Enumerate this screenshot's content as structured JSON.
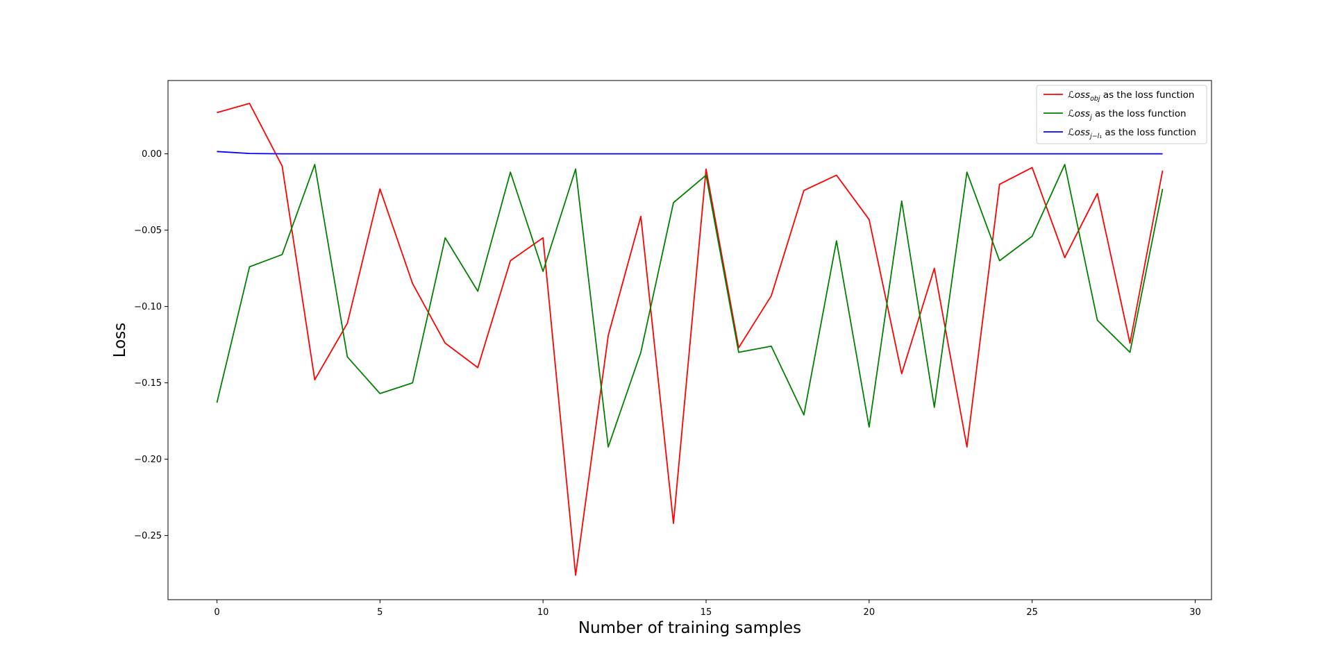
{
  "chart_data": {
    "type": "line",
    "title": "",
    "xlabel": "Number of training samples",
    "ylabel": "Loss",
    "xlim": [
      -1.5,
      30.5
    ],
    "ylim": [
      -0.292,
      0.048
    ],
    "xticks": [
      0,
      5,
      10,
      15,
      20,
      25,
      30
    ],
    "yticks": [
      0.0,
      -0.05,
      -0.1,
      -0.15,
      -0.2,
      -0.25
    ],
    "ytick_labels": [
      "0.00",
      "−0.05",
      "−0.10",
      "−0.15",
      "−0.20",
      "−0.25"
    ],
    "grid": false,
    "legend_position": "top-right",
    "x": [
      0,
      1,
      2,
      3,
      4,
      5,
      6,
      7,
      8,
      9,
      10,
      11,
      12,
      13,
      14,
      15,
      16,
      17,
      18,
      19,
      20,
      21,
      22,
      23,
      24,
      25,
      26,
      27,
      28,
      29
    ],
    "series": [
      {
        "name_base": "ℒoss",
        "name_sub": "obj",
        "name_suffix": " as the loss function",
        "color": "#ff0000",
        "values": [
          0.027,
          0.033,
          -0.008,
          -0.148,
          -0.111,
          -0.023,
          -0.085,
          -0.124,
          -0.14,
          -0.07,
          -0.055,
          -0.276,
          -0.119,
          -0.041,
          -0.242,
          -0.01,
          -0.127,
          -0.093,
          -0.024,
          -0.014,
          -0.043,
          -0.144,
          -0.075,
          -0.192,
          -0.02,
          -0.009,
          -0.068,
          -0.026,
          -0.124,
          -0.011
        ]
      },
      {
        "name_base": "ℒoss",
        "name_sub": "j",
        "name_suffix": " as the loss function",
        "color": "#008000",
        "values": [
          -0.163,
          -0.074,
          -0.066,
          -0.007,
          -0.133,
          -0.157,
          -0.15,
          -0.055,
          -0.09,
          -0.012,
          -0.077,
          -0.01,
          -0.192,
          -0.13,
          -0.032,
          -0.014,
          -0.13,
          -0.126,
          -0.171,
          -0.057,
          -0.179,
          -0.031,
          -0.166,
          -0.012,
          -0.07,
          -0.054,
          -0.007,
          -0.109,
          -0.13,
          -0.023
        ]
      },
      {
        "name_base": "ℒoss",
        "name_sub": "j−l₁",
        "name_suffix": " as the loss function",
        "color": "#0000ff",
        "values": [
          0.0015,
          0.0002,
          0,
          0,
          0,
          0,
          0,
          0,
          0,
          0,
          0,
          0,
          0,
          0,
          0,
          0,
          0,
          0,
          0,
          0,
          0,
          0,
          0,
          0,
          0,
          0,
          0,
          0,
          0,
          0
        ]
      }
    ]
  }
}
